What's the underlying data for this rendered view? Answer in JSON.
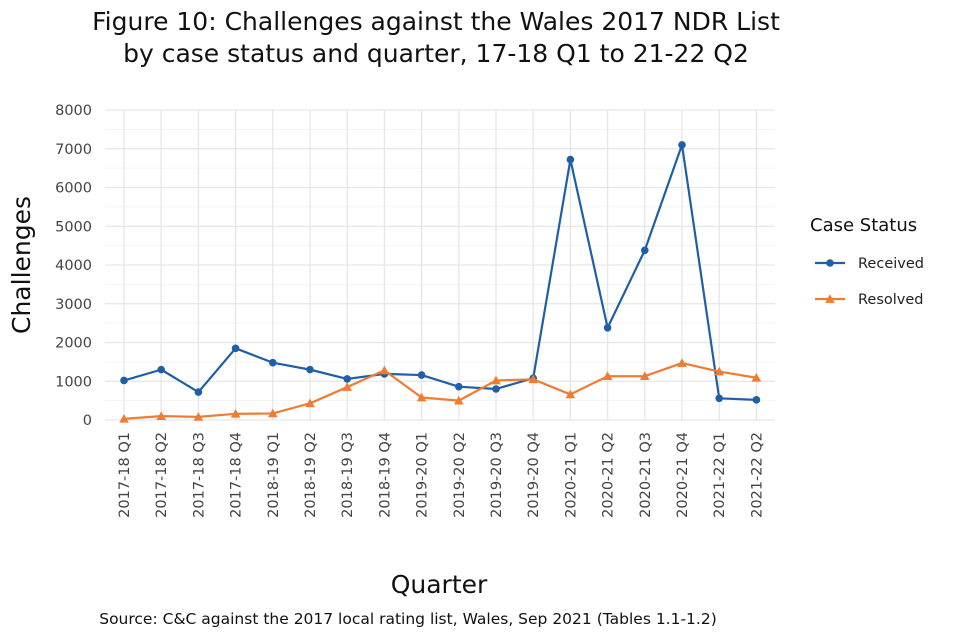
{
  "chart_data": {
    "type": "line",
    "title_lines": [
      "Figure 10: Challenges against the Wales 2017 NDR List",
      "by case status and quarter, 17-18 Q1 to 21-22 Q2"
    ],
    "xlabel": "Quarter",
    "ylabel": "Challenges",
    "ylim": [
      0,
      8000
    ],
    "yticks": [
      0,
      1000,
      2000,
      3000,
      4000,
      5000,
      6000,
      7000,
      8000
    ],
    "categories": [
      "2017-18 Q1",
      "2017-18 Q2",
      "2017-18 Q3",
      "2017-18 Q4",
      "2018-19 Q1",
      "2018-19 Q2",
      "2018-19 Q3",
      "2018-19 Q4",
      "2019-20 Q1",
      "2019-20 Q2",
      "2019-20 Q3",
      "2019-20 Q4",
      "2020-21 Q1",
      "2020-21 Q2",
      "2020-21 Q3",
      "2020-21 Q4",
      "2021-22 Q1",
      "2021-22 Q2"
    ],
    "series": [
      {
        "name": "Received",
        "color": "#1f5fa6",
        "marker": "circle",
        "values": [
          1020,
          1300,
          720,
          1850,
          1480,
          1300,
          1060,
          1190,
          1160,
          860,
          800,
          1080,
          6720,
          2380,
          4380,
          7100,
          560,
          520
        ]
      },
      {
        "name": "Resolved",
        "color": "#f07c34",
        "marker": "triangle",
        "values": [
          30,
          100,
          80,
          160,
          170,
          430,
          850,
          1280,
          580,
          500,
          1020,
          1050,
          660,
          1130,
          1130,
          1470,
          1250,
          1090
        ]
      }
    ],
    "legend_title": "Case Status",
    "legend_position": "right",
    "grid": true,
    "source": "Source: C&C against the 2017 local rating list, Wales, Sep 2021 (Tables 1.1-1.2)"
  }
}
